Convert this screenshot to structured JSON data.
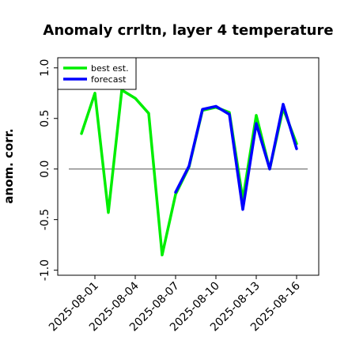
{
  "chart_data": {
    "type": "line",
    "title": "Anomaly crrltn, layer 4 temperature",
    "xlabel": "",
    "ylabel": "anom. corr.",
    "ylim": [
      -1.05,
      1.1
    ],
    "yticks": [
      -1.0,
      -0.5,
      0.0,
      0.5,
      1.0
    ],
    "ytick_labels": [
      "-1.0",
      "-0.5",
      "0.0",
      "0.5",
      "1.0"
    ],
    "x": [
      "2025-07-31",
      "2025-08-01",
      "2025-08-02",
      "2025-08-03",
      "2025-08-04",
      "2025-08-05",
      "2025-08-06",
      "2025-08-07",
      "2025-08-08",
      "2025-08-09",
      "2025-08-10",
      "2025-08-11",
      "2025-08-12",
      "2025-08-13",
      "2025-08-14",
      "2025-08-15",
      "2025-08-16"
    ],
    "xticks": [
      "2025-08-01",
      "2025-08-04",
      "2025-08-07",
      "2025-08-10",
      "2025-08-13",
      "2025-08-16"
    ],
    "xtick_colors": [
      "#000000",
      "#000000",
      "#2e8b2e",
      "#000000",
      "#000000",
      "#000000"
    ],
    "reference_line": 0.0,
    "legend_position": "upper-left",
    "grid": false,
    "series": [
      {
        "name": "best est.",
        "color": "#00ee00",
        "values": [
          0.35,
          0.75,
          -0.43,
          0.78,
          0.7,
          0.55,
          -0.85,
          -0.25,
          0.02,
          0.58,
          0.61,
          0.56,
          -0.3,
          0.53,
          0.0,
          0.6,
          0.25
        ]
      },
      {
        "name": "forecast",
        "color": "#0000ff",
        "values": [
          null,
          null,
          null,
          null,
          null,
          null,
          null,
          -0.23,
          0.03,
          0.59,
          0.62,
          0.54,
          -0.4,
          0.45,
          0.0,
          0.64,
          0.2
        ]
      }
    ]
  }
}
